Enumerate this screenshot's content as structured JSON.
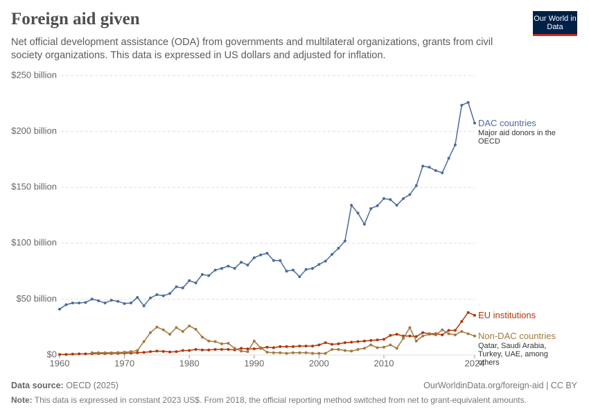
{
  "chart_data": {
    "type": "line",
    "title": "Foreign aid given",
    "subtitle": "Net official development assistance (ODA) from governments and multilateral organizations, grants from civil society organizations. This data is expressed in US dollars and adjusted for inflation.",
    "logo": "Our World in Data",
    "source_label": "Data source:",
    "source": "OECD (2025)",
    "url": "OurWorldinData.org/foreign-aid | CC BY",
    "note_label": "Note:",
    "note": "This data is expressed in constant 2023 US$. From 2018, the official reporting method switched from net to grant-equivalent amounts.",
    "x": [
      1960,
      1961,
      1962,
      1963,
      1964,
      1965,
      1966,
      1967,
      1968,
      1969,
      1970,
      1971,
      1972,
      1973,
      1974,
      1975,
      1976,
      1977,
      1978,
      1979,
      1980,
      1981,
      1982,
      1983,
      1984,
      1985,
      1986,
      1987,
      1988,
      1989,
      1990,
      1991,
      1992,
      1993,
      1994,
      1995,
      1996,
      1997,
      1998,
      1999,
      2000,
      2001,
      2002,
      2003,
      2004,
      2005,
      2006,
      2007,
      2008,
      2009,
      2010,
      2011,
      2012,
      2013,
      2014,
      2015,
      2016,
      2017,
      2018,
      2019,
      2020,
      2021,
      2022,
      2023,
      2024
    ],
    "xlim": [
      1960,
      2024
    ],
    "xticks": [
      1960,
      1970,
      1980,
      1990,
      2000,
      2010,
      2024
    ],
    "ylim": [
      0,
      250
    ],
    "yticks": [
      {
        "value": 0,
        "label": "$0"
      },
      {
        "value": 50,
        "label": "$50 billion"
      },
      {
        "value": 100,
        "label": "$100 billion"
      },
      {
        "value": 150,
        "label": "$150 billion"
      },
      {
        "value": 200,
        "label": "$200 billion"
      },
      {
        "value": 250,
        "label": "$250 billion"
      }
    ],
    "grid": true,
    "series": [
      {
        "name": "DAC countries",
        "description": "Major aid donors in the OECD",
        "color": "#4c6a9c",
        "values": [
          41,
          45,
          46.5,
          46.5,
          47,
          50,
          48.5,
          46.5,
          49,
          48,
          46,
          46.5,
          51.5,
          44,
          51,
          54,
          53,
          55,
          61,
          60,
          66.5,
          64.5,
          72,
          71,
          76,
          77.5,
          79.5,
          77.5,
          83,
          80.5,
          87,
          89.5,
          91,
          84.5,
          84.5,
          75,
          76,
          70,
          76.5,
          77.5,
          81,
          84,
          90,
          95.5,
          102,
          134,
          127,
          117,
          131,
          133.5,
          140,
          139,
          134,
          140,
          143.5,
          151.5,
          169,
          168,
          165,
          163,
          176,
          188,
          223.5,
          226,
          207.5
        ]
      },
      {
        "name": "EU institutions",
        "color": "#b13507",
        "values": [
          0.5,
          0.5,
          0.8,
          1,
          1,
          1.2,
          1.3,
          1.3,
          1.4,
          1.5,
          1.6,
          1.7,
          2,
          2.3,
          3,
          3.5,
          3.2,
          2.7,
          3,
          4,
          4,
          5,
          4.5,
          4.5,
          5,
          5,
          5,
          4.5,
          6,
          5.5,
          5.5,
          6,
          7,
          6.5,
          7.5,
          7.5,
          7.5,
          8,
          8,
          8,
          9,
          11,
          9.5,
          10,
          11,
          11.5,
          12,
          12.5,
          13,
          13.5,
          14,
          17.5,
          18.5,
          17,
          17,
          16.5,
          20,
          19,
          19,
          18,
          22,
          22,
          30,
          38,
          35.5
        ]
      },
      {
        "name": "Non-DAC countries",
        "description": "Qatar, Saudi Arabia, Turkey, UAE, among others",
        "color": "#a2793c",
        "values": [
          null,
          null,
          null,
          null,
          null,
          2,
          2,
          2,
          2,
          2.2,
          2.5,
          3,
          4,
          12,
          20,
          25,
          22.5,
          18.5,
          24.5,
          21,
          26,
          23,
          16,
          12.5,
          12,
          10,
          10.5,
          6,
          3.5,
          3,
          12.5,
          6.5,
          2.5,
          2,
          2,
          1.5,
          2,
          2,
          2,
          1.5,
          1.5,
          1.5,
          5,
          5,
          4,
          3.5,
          5,
          6,
          9,
          6.5,
          7,
          9,
          6,
          15,
          24.5,
          12.5,
          17,
          18.5,
          18,
          22.5,
          19,
          18,
          21,
          19,
          17
        ]
      }
    ]
  }
}
